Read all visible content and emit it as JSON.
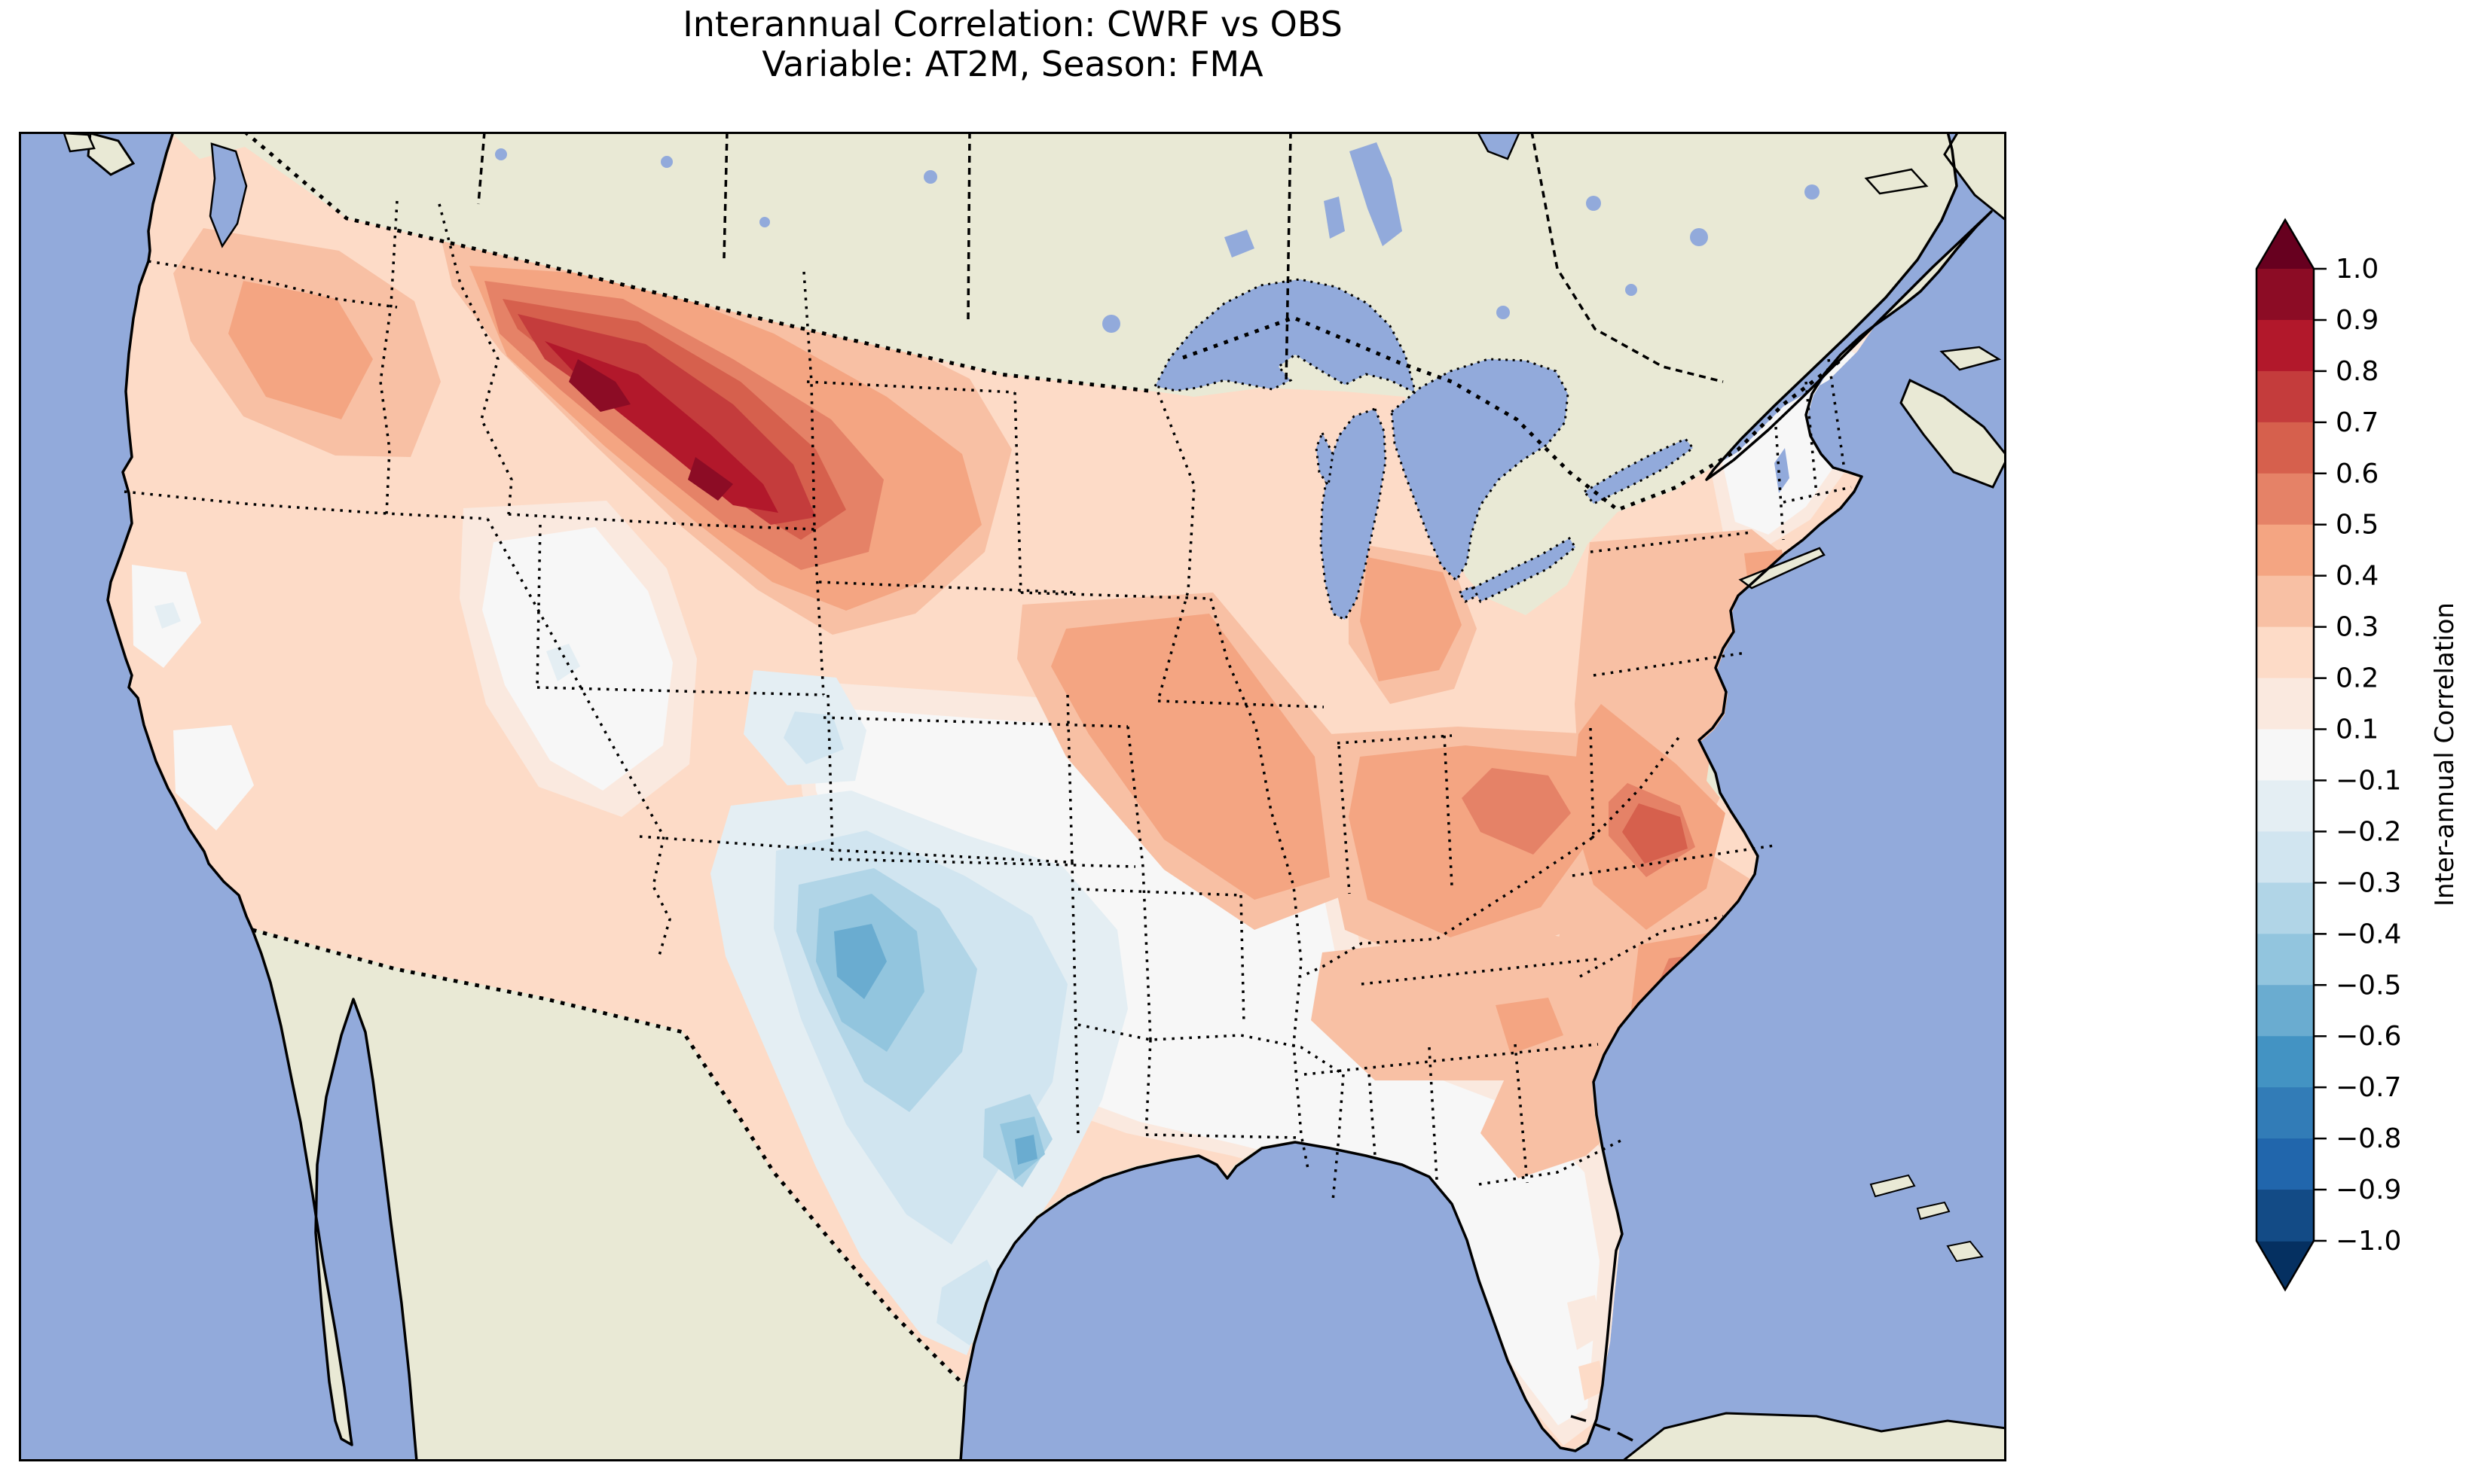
{
  "title": {
    "line1": "Interannual Correlation: CWRF vs OBS",
    "line2": "Variable: AT2M, Season: FMA"
  },
  "colorbar": {
    "label": "Inter-annual Correlation",
    "tick_labels": [
      "1.0",
      "0.9",
      "0.8",
      "0.7",
      "0.6",
      "0.5",
      "0.4",
      "0.3",
      "0.2",
      "0.1",
      "−0.1",
      "−0.2",
      "−0.3",
      "−0.4",
      "−0.5",
      "−0.6",
      "−0.7",
      "−0.8",
      "−0.9",
      "−1.0"
    ],
    "boundaries": [
      1.0,
      0.9,
      0.8,
      0.7,
      0.6,
      0.5,
      0.4,
      0.3,
      0.2,
      0.1,
      -0.1,
      -0.2,
      -0.3,
      -0.4,
      -0.5,
      -0.6,
      -0.7,
      -0.8,
      -0.9,
      -1.0
    ],
    "segment_colors": [
      "#8c0c25",
      "#b2182b",
      "#c43c3c",
      "#d6604d",
      "#e58267",
      "#f4a582",
      "#f8c0a4",
      "#fddbc7",
      "#fae9df",
      "#f7f7f7",
      "#e4eef3",
      "#d1e5f0",
      "#b1d5e7",
      "#92c5de",
      "#6aacd0",
      "#4393c3",
      "#327cb7",
      "#2166ac",
      "#134b86"
    ],
    "extend_over_color": "#67001f",
    "extend_under_color": "#053061",
    "outline_color": "#000000"
  },
  "map": {
    "colors": {
      "ocean": "#92aadb",
      "land": "#e9e9d5",
      "lake": "#92aadb",
      "coastline": "#000000",
      "border": "#000000",
      "frame": "#000000"
    },
    "palette": {
      "p10": "#67001f",
      "p9": "#8c0c25",
      "p8": "#b2182b",
      "p7": "#c43c3c",
      "p6": "#d6604d",
      "p5": "#e58267",
      "p4": "#f4a582",
      "p3": "#f8c0a4",
      "p2": "#fddbc7",
      "p1": "#fae9df",
      "z0": "#f7f7f7",
      "m1": "#e4eef3",
      "m2": "#d1e5f0",
      "m3": "#b1d5e7",
      "m4": "#92c5de",
      "m5": "#6aacd0",
      "m6": "#4393c3"
    },
    "border_styles": {
      "states": "dotted",
      "countries": "dotted",
      "coastlines": "solid",
      "lakes": "dotted"
    }
  },
  "chart_data": {
    "type": "heatmap",
    "subtype": "filled-contour-map",
    "title": "Interannual Correlation: CWRF vs OBS",
    "variable": "AT2M",
    "season": "FMA",
    "series_compared": [
      "CWRF",
      "OBS"
    ],
    "region": "Contiguous United States (map window also shows S. Canada, N. Mexico, Gulf of Mexico, Bahamas, Cuba)",
    "colormap": "RdBu_r, discrete",
    "levels": [
      -1.0,
      -0.9,
      -0.8,
      -0.7,
      -0.6,
      -0.5,
      -0.4,
      -0.3,
      -0.2,
      -0.1,
      0.1,
      0.2,
      0.3,
      0.4,
      0.5,
      0.6,
      0.7,
      0.8,
      0.9,
      1.0
    ],
    "colorbar_label": "Inter-annual Correlation",
    "colorbar_range": [
      -1.0,
      1.0
    ],
    "colorbar_extend": "both",
    "regional_values": [
      {
        "region": "Pacific Northwest (WA/OR)",
        "approx_correlation": 0.3
      },
      {
        "region": "Montana / northern Wyoming (field maximum)",
        "approx_correlation": 0.85
      },
      {
        "region": "Idaho / northern plains ring",
        "approx_correlation": 0.5
      },
      {
        "region": "California coast and Central Valley",
        "approx_correlation": 0.2
      },
      {
        "region": "Great Basin (Nevada/Utah)",
        "approx_correlation": 0.0
      },
      {
        "region": "Eastern Utah / western Colorado",
        "approx_correlation": -0.2
      },
      {
        "region": "Eastern New Mexico / Texas Panhandle (field minimum)",
        "approx_correlation": -0.55
      },
      {
        "region": "Central and South Texas",
        "approx_correlation": -0.4
      },
      {
        "region": "Kansas / Oklahoma / Missouri / Arkansas",
        "approx_correlation": 0.0
      },
      {
        "region": "Upper Midwest (IA/IL/IN/OH/lower MI)",
        "approx_correlation": 0.45
      },
      {
        "region": "Pennsylvania / upstate New York",
        "approx_correlation": 0.65
      },
      {
        "region": "New England",
        "approx_correlation": 0.05
      },
      {
        "region": "Virginia / Carolinas coastal plain",
        "approx_correlation": 0.45
      },
      {
        "region": "Southeast (MS/AL/GA)",
        "approx_correlation": 0.1
      },
      {
        "region": "Florida peninsula",
        "approx_correlation": 0.1
      },
      {
        "region": "Texas Gulf Coast",
        "approx_correlation": -0.3
      }
    ]
  }
}
